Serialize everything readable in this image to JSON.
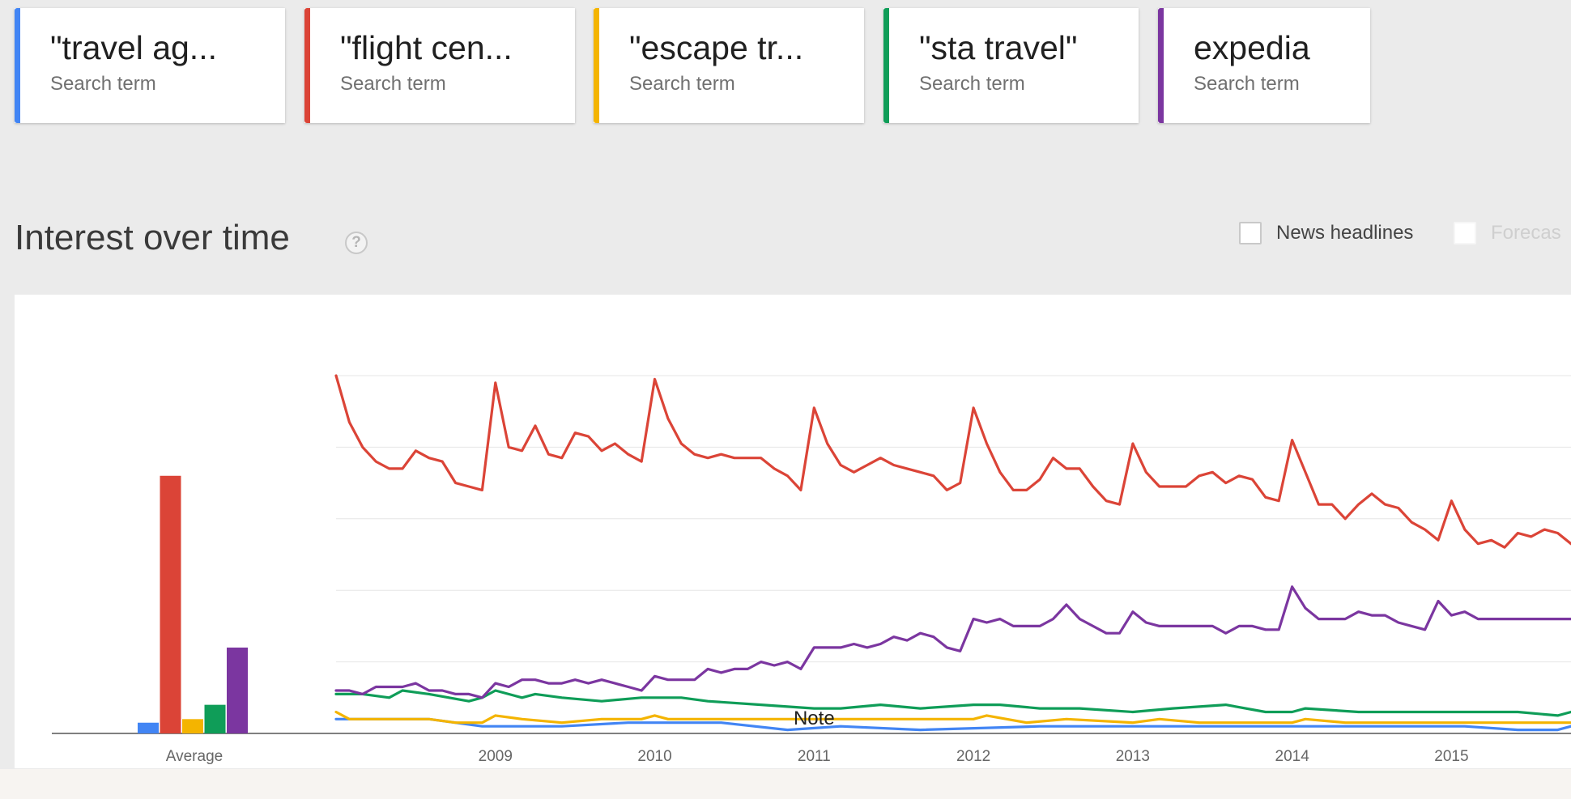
{
  "search_terms": [
    {
      "label": "\"travel ag...",
      "sub": "Search term",
      "color": "#4285f4"
    },
    {
      "label": "\"flight cen...",
      "sub": "Search term",
      "color": "#db4437"
    },
    {
      "label": "\"escape tr...",
      "sub": "Search term",
      "color": "#f4b400"
    },
    {
      "label": "\"sta travel\"",
      "sub": "Search term",
      "color": "#0f9d58"
    },
    {
      "label": "expedia",
      "sub": "Search term",
      "color": "#7b36a0"
    }
  ],
  "section": {
    "title": "Interest over time",
    "help_icon": "?",
    "news_headlines_label": "News headlines",
    "forecast_label": "Forecas"
  },
  "chart_data": {
    "type": "line",
    "average_panel": {
      "type": "bar",
      "label": "Average",
      "values": [
        3,
        72,
        4,
        8,
        24
      ]
    },
    "x_tick_labels": [
      "2009",
      "2010",
      "2011",
      "2012",
      "2013",
      "2014",
      "2015"
    ],
    "x_range": [
      "2008-01",
      "2015-10"
    ],
    "y_range": [
      0,
      100
    ],
    "gridlines": true,
    "annotation": "Note",
    "series": [
      {
        "color": "#4285f4",
        "points": [
          [
            "2008-01",
            4
          ],
          [
            "2008-08",
            4
          ],
          [
            "2008-12",
            2
          ],
          [
            "2009-06",
            2
          ],
          [
            "2009-11",
            3
          ],
          [
            "2010-06",
            3
          ],
          [
            "2010-11",
            1
          ],
          [
            "2011-03",
            2
          ],
          [
            "2011-09",
            1
          ],
          [
            "2012-06",
            2
          ],
          [
            "2013-06",
            2
          ],
          [
            "2014-06",
            2
          ],
          [
            "2015-02",
            2
          ],
          [
            "2015-06",
            1
          ],
          [
            "2015-09",
            1
          ],
          [
            "2015-10",
            2
          ]
        ]
      },
      {
        "color": "#db4437",
        "points": [
          [
            "2008-01",
            100
          ],
          [
            "2008-02",
            87
          ],
          [
            "2008-03",
            80
          ],
          [
            "2008-04",
            76
          ],
          [
            "2008-05",
            74
          ],
          [
            "2008-06",
            74
          ],
          [
            "2008-07",
            79
          ],
          [
            "2008-08",
            77
          ],
          [
            "2008-09",
            76
          ],
          [
            "2008-10",
            70
          ],
          [
            "2008-11",
            69
          ],
          [
            "2008-12",
            68
          ],
          [
            "2009-01",
            98
          ],
          [
            "2009-02",
            80
          ],
          [
            "2009-03",
            79
          ],
          [
            "2009-04",
            86
          ],
          [
            "2009-05",
            78
          ],
          [
            "2009-06",
            77
          ],
          [
            "2009-07",
            84
          ],
          [
            "2009-08",
            83
          ],
          [
            "2009-09",
            79
          ],
          [
            "2009-10",
            81
          ],
          [
            "2009-11",
            78
          ],
          [
            "2009-12",
            76
          ],
          [
            "2010-01",
            99
          ],
          [
            "2010-02",
            88
          ],
          [
            "2010-03",
            81
          ],
          [
            "2010-04",
            78
          ],
          [
            "2010-05",
            77
          ],
          [
            "2010-06",
            78
          ],
          [
            "2010-07",
            77
          ],
          [
            "2010-08",
            77
          ],
          [
            "2010-09",
            77
          ],
          [
            "2010-10",
            74
          ],
          [
            "2010-11",
            72
          ],
          [
            "2010-12",
            68
          ],
          [
            "2011-01",
            91
          ],
          [
            "2011-02",
            81
          ],
          [
            "2011-03",
            75
          ],
          [
            "2011-04",
            73
          ],
          [
            "2011-05",
            75
          ],
          [
            "2011-06",
            77
          ],
          [
            "2011-07",
            75
          ],
          [
            "2011-08",
            74
          ],
          [
            "2011-09",
            73
          ],
          [
            "2011-10",
            72
          ],
          [
            "2011-11",
            68
          ],
          [
            "2011-12",
            70
          ],
          [
            "2012-01",
            91
          ],
          [
            "2012-02",
            81
          ],
          [
            "2012-03",
            73
          ],
          [
            "2012-04",
            68
          ],
          [
            "2012-05",
            68
          ],
          [
            "2012-06",
            71
          ],
          [
            "2012-07",
            77
          ],
          [
            "2012-08",
            74
          ],
          [
            "2012-09",
            74
          ],
          [
            "2012-10",
            69
          ],
          [
            "2012-11",
            65
          ],
          [
            "2012-12",
            64
          ],
          [
            "2013-01",
            81
          ],
          [
            "2013-02",
            73
          ],
          [
            "2013-03",
            69
          ],
          [
            "2013-04",
            69
          ],
          [
            "2013-05",
            69
          ],
          [
            "2013-06",
            72
          ],
          [
            "2013-07",
            73
          ],
          [
            "2013-08",
            70
          ],
          [
            "2013-09",
            72
          ],
          [
            "2013-10",
            71
          ],
          [
            "2013-11",
            66
          ],
          [
            "2013-12",
            65
          ],
          [
            "2014-01",
            82
          ],
          [
            "2014-02",
            73
          ],
          [
            "2014-03",
            64
          ],
          [
            "2014-04",
            64
          ],
          [
            "2014-05",
            60
          ],
          [
            "2014-06",
            64
          ],
          [
            "2014-07",
            67
          ],
          [
            "2014-08",
            64
          ],
          [
            "2014-09",
            63
          ],
          [
            "2014-10",
            59
          ],
          [
            "2014-11",
            57
          ],
          [
            "2014-12",
            54
          ],
          [
            "2015-01",
            65
          ],
          [
            "2015-02",
            57
          ],
          [
            "2015-03",
            53
          ],
          [
            "2015-04",
            54
          ],
          [
            "2015-05",
            52
          ],
          [
            "2015-06",
            56
          ],
          [
            "2015-07",
            55
          ],
          [
            "2015-08",
            57
          ],
          [
            "2015-09",
            56
          ],
          [
            "2015-10",
            53
          ]
        ]
      },
      {
        "color": "#f4b400",
        "points": [
          [
            "2008-01",
            6
          ],
          [
            "2008-02",
            4
          ],
          [
            "2008-08",
            4
          ],
          [
            "2008-10",
            3
          ],
          [
            "2008-12",
            3
          ],
          [
            "2009-01",
            5
          ],
          [
            "2009-03",
            4
          ],
          [
            "2009-06",
            3
          ],
          [
            "2009-09",
            4
          ],
          [
            "2009-12",
            4
          ],
          [
            "2010-01",
            5
          ],
          [
            "2010-02",
            4
          ],
          [
            "2010-06",
            4
          ],
          [
            "2011-01",
            4
          ],
          [
            "2011-06",
            4
          ],
          [
            "2012-01",
            4
          ],
          [
            "2012-02",
            5
          ],
          [
            "2012-05",
            3
          ],
          [
            "2012-08",
            4
          ],
          [
            "2013-01",
            3
          ],
          [
            "2013-03",
            4
          ],
          [
            "2013-06",
            3
          ],
          [
            "2014-01",
            3
          ],
          [
            "2014-02",
            4
          ],
          [
            "2014-05",
            3
          ],
          [
            "2015-01",
            3
          ],
          [
            "2015-02",
            3
          ],
          [
            "2015-06",
            3
          ],
          [
            "2015-10",
            3
          ]
        ]
      },
      {
        "color": "#0f9d58",
        "points": [
          [
            "2008-01",
            11
          ],
          [
            "2008-03",
            11
          ],
          [
            "2008-05",
            10
          ],
          [
            "2008-06",
            12
          ],
          [
            "2008-08",
            11
          ],
          [
            "2008-11",
            9
          ],
          [
            "2008-12",
            10
          ],
          [
            "2009-01",
            12
          ],
          [
            "2009-03",
            10
          ],
          [
            "2009-04",
            11
          ],
          [
            "2009-06",
            10
          ],
          [
            "2009-09",
            9
          ],
          [
            "2009-12",
            10
          ],
          [
            "2010-03",
            10
          ],
          [
            "2010-05",
            9
          ],
          [
            "2010-09",
            8
          ],
          [
            "2011-01",
            7
          ],
          [
            "2011-03",
            7
          ],
          [
            "2011-06",
            8
          ],
          [
            "2011-09",
            7
          ],
          [
            "2012-01",
            8
          ],
          [
            "2012-03",
            8
          ],
          [
            "2012-06",
            7
          ],
          [
            "2012-09",
            7
          ],
          [
            "2013-01",
            6
          ],
          [
            "2013-04",
            7
          ],
          [
            "2013-08",
            8
          ],
          [
            "2013-11",
            6
          ],
          [
            "2014-01",
            6
          ],
          [
            "2014-02",
            7
          ],
          [
            "2014-06",
            6
          ],
          [
            "2014-09",
            6
          ],
          [
            "2015-01",
            6
          ],
          [
            "2015-06",
            6
          ],
          [
            "2015-09",
            5
          ],
          [
            "2015-10",
            6
          ]
        ]
      },
      {
        "color": "#7b36a0",
        "points": [
          [
            "2008-01",
            12
          ],
          [
            "2008-02",
            12
          ],
          [
            "2008-03",
            11
          ],
          [
            "2008-04",
            13
          ],
          [
            "2008-05",
            13
          ],
          [
            "2008-06",
            13
          ],
          [
            "2008-07",
            14
          ],
          [
            "2008-08",
            12
          ],
          [
            "2008-09",
            12
          ],
          [
            "2008-10",
            11
          ],
          [
            "2008-11",
            11
          ],
          [
            "2008-12",
            10
          ],
          [
            "2009-01",
            14
          ],
          [
            "2009-02",
            13
          ],
          [
            "2009-03",
            15
          ],
          [
            "2009-04",
            15
          ],
          [
            "2009-05",
            14
          ],
          [
            "2009-06",
            14
          ],
          [
            "2009-07",
            15
          ],
          [
            "2009-08",
            14
          ],
          [
            "2009-09",
            15
          ],
          [
            "2009-10",
            14
          ],
          [
            "2009-11",
            13
          ],
          [
            "2009-12",
            12
          ],
          [
            "2010-01",
            16
          ],
          [
            "2010-02",
            15
          ],
          [
            "2010-03",
            15
          ],
          [
            "2010-04",
            15
          ],
          [
            "2010-05",
            18
          ],
          [
            "2010-06",
            17
          ],
          [
            "2010-07",
            18
          ],
          [
            "2010-08",
            18
          ],
          [
            "2010-09",
            20
          ],
          [
            "2010-10",
            19
          ],
          [
            "2010-11",
            20
          ],
          [
            "2010-12",
            18
          ],
          [
            "2011-01",
            24
          ],
          [
            "2011-02",
            24
          ],
          [
            "2011-03",
            24
          ],
          [
            "2011-04",
            25
          ],
          [
            "2011-05",
            24
          ],
          [
            "2011-06",
            25
          ],
          [
            "2011-07",
            27
          ],
          [
            "2011-08",
            26
          ],
          [
            "2011-09",
            28
          ],
          [
            "2011-10",
            27
          ],
          [
            "2011-11",
            24
          ],
          [
            "2011-12",
            23
          ],
          [
            "2012-01",
            32
          ],
          [
            "2012-02",
            31
          ],
          [
            "2012-03",
            32
          ],
          [
            "2012-04",
            30
          ],
          [
            "2012-05",
            30
          ],
          [
            "2012-06",
            30
          ],
          [
            "2012-07",
            32
          ],
          [
            "2012-08",
            36
          ],
          [
            "2012-09",
            32
          ],
          [
            "2012-10",
            30
          ],
          [
            "2012-11",
            28
          ],
          [
            "2012-12",
            28
          ],
          [
            "2013-01",
            34
          ],
          [
            "2013-02",
            31
          ],
          [
            "2013-03",
            30
          ],
          [
            "2013-04",
            30
          ],
          [
            "2013-05",
            30
          ],
          [
            "2013-06",
            30
          ],
          [
            "2013-07",
            30
          ],
          [
            "2013-08",
            28
          ],
          [
            "2013-09",
            30
          ],
          [
            "2013-10",
            30
          ],
          [
            "2013-11",
            29
          ],
          [
            "2013-12",
            29
          ],
          [
            "2014-01",
            41
          ],
          [
            "2014-02",
            35
          ],
          [
            "2014-03",
            32
          ],
          [
            "2014-04",
            32
          ],
          [
            "2014-05",
            32
          ],
          [
            "2014-06",
            34
          ],
          [
            "2014-07",
            33
          ],
          [
            "2014-08",
            33
          ],
          [
            "2014-09",
            31
          ],
          [
            "2014-10",
            30
          ],
          [
            "2014-11",
            29
          ],
          [
            "2014-12",
            37
          ],
          [
            "2015-01",
            33
          ],
          [
            "2015-02",
            34
          ],
          [
            "2015-03",
            32
          ],
          [
            "2015-04",
            32
          ],
          [
            "2015-05",
            32
          ],
          [
            "2015-06",
            32
          ],
          [
            "2015-07",
            32
          ],
          [
            "2015-08",
            32
          ],
          [
            "2015-09",
            32
          ],
          [
            "2015-10",
            32
          ]
        ]
      }
    ]
  }
}
